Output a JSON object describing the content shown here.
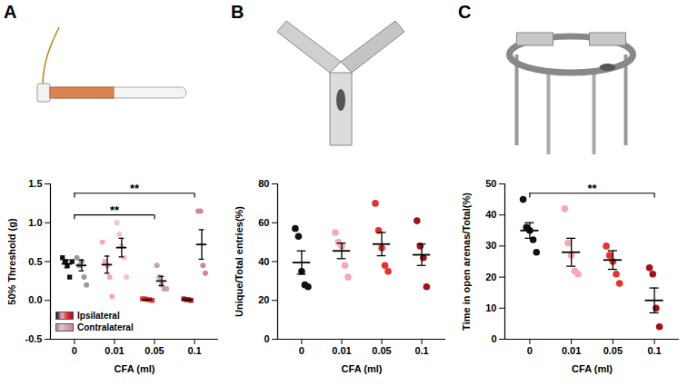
{
  "chart_data": [
    {
      "type": "scatter",
      "panel": "A",
      "x_label": "CFA (ml)",
      "y_label": "50% Threshold (g)",
      "categories": [
        "0",
        "0.01",
        "0.05",
        "0.1"
      ],
      "ylim": [
        -0.5,
        1.5
      ],
      "yticks": [
        -0.5,
        {
          "value": 0,
          "label": "0.0"
        },
        0.5,
        {
          "value": 1,
          "label": "1.0"
        },
        1.5
      ],
      "grid": false,
      "legend": "bottom-left",
      "series": [
        {
          "name": "Ipsilateral",
          "marker": "square",
          "colors": [
            "#111111",
            "#f4a9b4",
            "#e8302c",
            "#a3111c"
          ],
          "values": [
            [
              0.55,
              0.5,
              0.45,
              0.3,
              0.5
            ],
            [
              0.75,
              0.5,
              0.45,
              0.3,
              0.05
            ],
            [
              0.02,
              0.02,
              0.01,
              0.01,
              0.0
            ],
            [
              0.02,
              0.01,
              0.01,
              0.0
            ]
          ],
          "mean": [
            0.47,
            0.46,
            0.01,
            0.01
          ],
          "sem": [
            0.05,
            0.11,
            0.005,
            0.005
          ]
        },
        {
          "name": "Contralateral",
          "marker": "circle",
          "colors": [
            "#9a9a9a",
            "#f2c2c8",
            "#c7a3aa",
            "#d9848a"
          ],
          "values": [
            [
              0.55,
              0.45,
              0.5,
              0.3,
              0.2
            ],
            [
              1.0,
              0.85,
              0.7,
              0.55,
              0.3
            ],
            [
              0.45,
              0.3,
              0.2,
              0.15,
              0.15
            ],
            [
              1.15,
              1.15,
              0.45,
              0.35
            ]
          ],
          "mean": [
            0.45,
            0.68,
            0.25,
            0.72
          ],
          "sem": [
            0.07,
            0.12,
            0.06,
            0.19
          ]
        }
      ],
      "annotations": [
        {
          "from": "0",
          "to": "0.05",
          "text": "**"
        },
        {
          "from": "0",
          "to": "0.1",
          "text": "**"
        }
      ]
    },
    {
      "type": "scatter",
      "panel": "B",
      "x_label": "CFA (ml)",
      "y_label": "Unique/Total entries(%)",
      "categories": [
        "0",
        "0.01",
        "0.05",
        "0.1"
      ],
      "ylim": [
        0,
        80
      ],
      "yticks": [
        0,
        20,
        40,
        60,
        80
      ],
      "grid": false,
      "series": [
        {
          "marker": "circle",
          "colors": [
            "#111111",
            "#f4a9b4",
            "#e8302c",
            "#a3111c"
          ],
          "values": [
            [
              57,
              53,
              35,
              28,
              27
            ],
            [
              55,
              50,
              48,
              38,
              32
            ],
            [
              70,
              56,
              47,
              38,
              35
            ],
            [
              61,
              48,
              42,
              27
            ]
          ],
          "mean": [
            39.5,
            45.5,
            49,
            43.5
          ],
          "sem": [
            6,
            4,
            6,
            5.5
          ]
        }
      ],
      "annotations": []
    },
    {
      "type": "scatter",
      "panel": "C",
      "x_label": "CFA (ml)",
      "y_label": "Time in open arenas/Total(%)",
      "categories": [
        "0",
        "0.01",
        "0.05",
        "0.1"
      ],
      "ylim": [
        0,
        50
      ],
      "yticks": [
        0,
        10,
        20,
        30,
        40,
        50
      ],
      "grid": false,
      "series": [
        {
          "marker": "circle",
          "colors": [
            "#111111",
            "#f4a9b4",
            "#e8302c",
            "#a3111c"
          ],
          "values": [
            [
              45,
              36,
              35,
              32,
              28
            ],
            [
              42,
              31,
              27,
              22,
              21
            ],
            [
              30,
              27,
              25,
              21,
              18
            ],
            [
              23,
              21,
              10,
              4
            ]
          ],
          "mean": [
            35,
            28,
            25.5,
            12.5
          ],
          "sem": [
            2.5,
            4.5,
            3,
            4
          ]
        }
      ],
      "annotations": [
        {
          "from": "0",
          "to": "0.1",
          "text": "**"
        }
      ]
    }
  ]
}
